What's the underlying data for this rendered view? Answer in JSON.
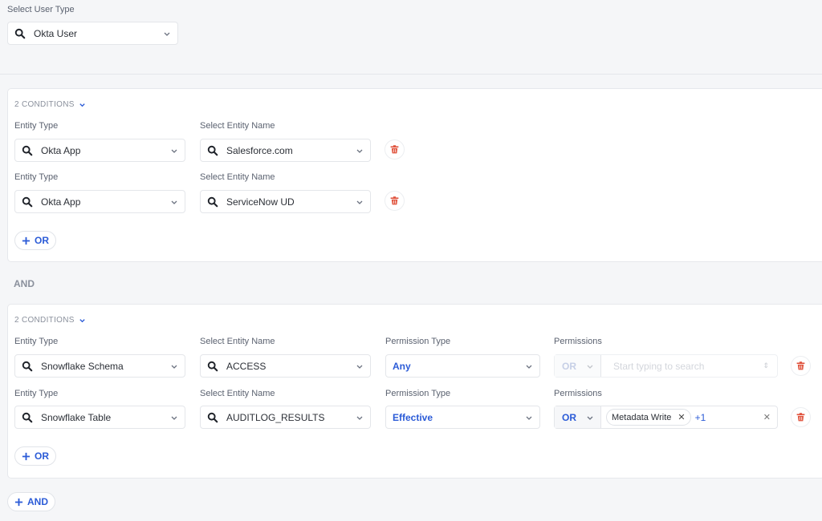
{
  "user_type": {
    "label": "Select User Type",
    "value": "Okta User"
  },
  "groups": [
    {
      "conditions_label": "2 CONDITIONS",
      "rows": [
        {
          "entity_type_label": "Entity Type",
          "entity_type": "Okta App",
          "entity_name_label": "Select Entity Name",
          "entity_name": "Salesforce.com"
        },
        {
          "entity_type_label": "Entity Type",
          "entity_type": "Okta App",
          "entity_name_label": "Select Entity Name",
          "entity_name": "ServiceNow UD"
        }
      ],
      "add_or_label": "OR"
    },
    {
      "conditions_label": "2 CONDITIONS",
      "rows": [
        {
          "entity_type_label": "Entity Type",
          "entity_type": "Snowflake Schema",
          "entity_name_label": "Select Entity Name",
          "entity_name": "ACCESS",
          "permission_type_label": "Permission Type",
          "permission_type": "Any",
          "permissions_label": "Permissions",
          "operator": "OR",
          "permissions_placeholder": "Start typing to search",
          "disabled": true
        },
        {
          "entity_type_label": "Entity Type",
          "entity_type": "Snowflake Table",
          "entity_name_label": "Select Entity Name",
          "entity_name": "AUDITLOG_RESULTS",
          "permission_type_label": "Permission Type",
          "permission_type": "Effective",
          "permissions_label": "Permissions",
          "operator": "OR",
          "permission_chip": "Metadata Write",
          "more_count": "+1"
        }
      ],
      "add_or_label": "OR"
    }
  ],
  "and_label": "AND",
  "add_and_label": "AND",
  "colors": {
    "accent": "#2b5bd7",
    "danger": "#e0533d",
    "background": "#f5f6f8"
  }
}
